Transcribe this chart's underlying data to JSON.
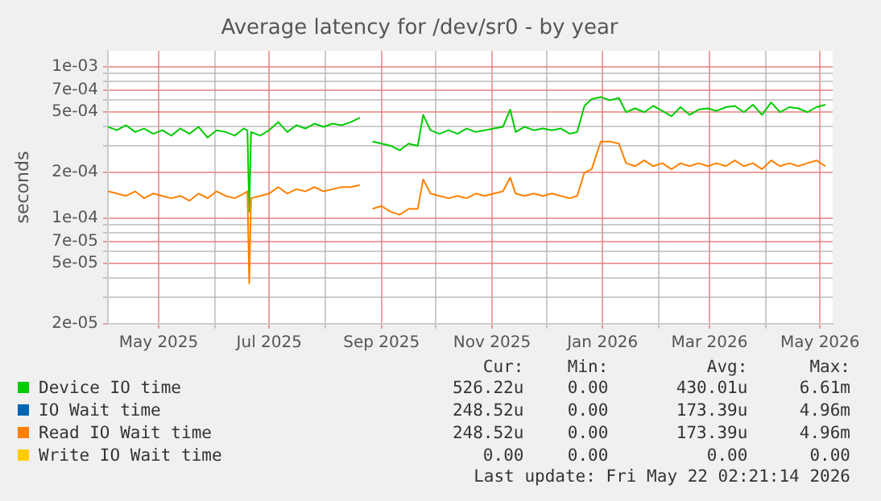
{
  "chart_data": {
    "type": "line",
    "title": "Average latency for /dev/sr0 - by year",
    "ylabel": "seconds",
    "log": "y",
    "grid": true,
    "legend": "bottom",
    "marker": "none",
    "line_style": "solid",
    "x": [
      "2025-04-03",
      "2025-04-08",
      "2025-04-13",
      "2025-04-18",
      "2025-04-23",
      "2025-04-28",
      "2025-05-03",
      "2025-05-08",
      "2025-05-13",
      "2025-05-18",
      "2025-05-23",
      "2025-05-28",
      "2025-06-02",
      "2025-06-07",
      "2025-06-12",
      "2025-06-17",
      "2025-06-19",
      "2025-06-20",
      "2025-06-21",
      "2025-06-26",
      "2025-07-01",
      "2025-07-06",
      "2025-07-11",
      "2025-07-16",
      "2025-07-21",
      "2025-07-26",
      "2025-07-31",
      "2025-08-05",
      "2025-08-10",
      "2025-08-15",
      "2025-08-20",
      "2025-08-21",
      "2025-08-27",
      "2025-09-01",
      "2025-09-06",
      "2025-09-11",
      "2025-09-16",
      "2025-09-21",
      "2025-09-24",
      "2025-09-28",
      "2025-10-03",
      "2025-10-08",
      "2025-10-13",
      "2025-10-18",
      "2025-10-23",
      "2025-10-28",
      "2025-11-02",
      "2025-11-07",
      "2025-11-11",
      "2025-11-14",
      "2025-11-19",
      "2025-11-24",
      "2025-11-29",
      "2025-12-04",
      "2025-12-09",
      "2025-12-14",
      "2025-12-18",
      "2025-12-22",
      "2025-12-26",
      "2025-12-31",
      "2026-01-05",
      "2026-01-10",
      "2026-01-14",
      "2026-01-19",
      "2026-01-24",
      "2026-01-29",
      "2026-02-03",
      "2026-02-08",
      "2026-02-13",
      "2026-02-18",
      "2026-02-23",
      "2026-02-28",
      "2026-03-05",
      "2026-03-10",
      "2026-03-15",
      "2026-03-20",
      "2026-03-25",
      "2026-03-30",
      "2026-04-04",
      "2026-04-09",
      "2026-04-14",
      "2026-04-19",
      "2026-04-24",
      "2026-04-29",
      "2026-05-04"
    ],
    "xlim": [
      "2025-04-03",
      "2026-05-08"
    ],
    "xticks": [
      {
        "value": "2025-05-01",
        "label": "May 2025"
      },
      {
        "value": "2025-06-01",
        "label": null
      },
      {
        "value": "2025-07-01",
        "label": "Jul 2025"
      },
      {
        "value": "2025-08-01",
        "label": null
      },
      {
        "value": "2025-09-01",
        "label": "Sep 2025"
      },
      {
        "value": "2025-10-01",
        "label": null
      },
      {
        "value": "2025-11-01",
        "label": "Nov 2025"
      },
      {
        "value": "2025-12-01",
        "label": null
      },
      {
        "value": "2026-01-01",
        "label": "Jan 2026"
      },
      {
        "value": "2026-02-01",
        "label": null
      },
      {
        "value": "2026-03-01",
        "label": "Mar 2026"
      },
      {
        "value": "2026-04-01",
        "label": null
      },
      {
        "value": "2026-05-01",
        "label": "May 2026"
      }
    ],
    "ylim": [
      2e-05,
      0.00127
    ],
    "yticks": [
      {
        "value": 2e-05,
        "label": "2e-05"
      },
      {
        "value": 3e-05,
        "label": null
      },
      {
        "value": 4e-05,
        "label": null
      },
      {
        "value": 5e-05,
        "label": "5e-05"
      },
      {
        "value": 6e-05,
        "label": null
      },
      {
        "value": 7e-05,
        "label": "7e-05"
      },
      {
        "value": 8e-05,
        "label": null
      },
      {
        "value": 9e-05,
        "label": null
      },
      {
        "value": 0.0001,
        "label": "1e-04"
      },
      {
        "value": 0.0002,
        "label": "2e-04"
      },
      {
        "value": 0.0003,
        "label": null
      },
      {
        "value": 0.0004,
        "label": null
      },
      {
        "value": 0.0005,
        "label": "5e-04"
      },
      {
        "value": 0.0006,
        "label": null
      },
      {
        "value": 0.0007,
        "label": "7e-04"
      },
      {
        "value": 0.0008,
        "label": null
      },
      {
        "value": 0.0009,
        "label": null
      },
      {
        "value": 0.001,
        "label": "1e-03"
      }
    ],
    "series": [
      {
        "name": "Device IO time",
        "color": "#00cc00",
        "values": [
          0.0004,
          0.00038,
          0.00041,
          0.00037,
          0.00039,
          0.00036,
          0.00038,
          0.00035,
          0.00039,
          0.00036,
          0.0004,
          0.00034,
          0.00038,
          0.00037,
          0.00035,
          0.00039,
          0.00038,
          0.00011,
          0.00037,
          0.00035,
          0.00038,
          0.00043,
          0.00037,
          0.00041,
          0.00039,
          0.00042,
          0.0004,
          0.00042,
          0.00041,
          0.00043,
          0.00046,
          null,
          0.00032,
          0.00031,
          0.0003,
          0.00028,
          0.00031,
          0.0003,
          0.00048,
          0.00038,
          0.00036,
          0.00038,
          0.00036,
          0.00039,
          0.00037,
          0.00038,
          0.00039,
          0.0004,
          0.00052,
          0.00037,
          0.0004,
          0.00038,
          0.00039,
          0.00038,
          0.00039,
          0.00036,
          0.00037,
          0.00055,
          0.00061,
          0.00063,
          0.0006,
          0.00062,
          0.0005,
          0.00053,
          0.0005,
          0.00055,
          0.00051,
          0.00047,
          0.00054,
          0.00048,
          0.00052,
          0.00053,
          0.00051,
          0.00054,
          0.00055,
          0.0005,
          0.00056,
          0.00048,
          0.00058,
          0.0005,
          0.00054,
          0.00053,
          0.0005,
          0.00054,
          0.00056
        ]
      },
      {
        "name": "IO Wait time",
        "color": "#0066b3",
        "values": [
          null,
          null,
          null,
          null,
          null,
          null,
          null,
          null,
          null,
          null,
          null,
          null,
          null,
          null,
          null,
          null,
          null,
          null,
          null,
          null,
          null,
          null,
          null,
          null,
          null,
          null,
          null,
          null,
          null,
          null,
          null,
          null,
          null,
          null,
          null,
          null,
          null,
          null,
          null,
          null,
          null,
          null,
          null,
          null,
          null,
          null,
          null,
          null,
          null,
          null,
          null,
          null,
          null,
          null,
          null,
          null,
          null,
          null,
          null,
          null,
          null,
          null,
          null,
          null,
          null,
          null,
          null,
          null,
          null,
          null,
          null,
          null,
          null,
          null,
          null,
          null,
          null,
          null,
          null,
          null,
          null,
          null,
          null,
          null,
          null
        ]
      },
      {
        "name": "Read IO Wait time",
        "color": "#ff8000",
        "values": [
          0.00015,
          0.000145,
          0.00014,
          0.00015,
          0.000135,
          0.000145,
          0.00014,
          0.000135,
          0.00014,
          0.00013,
          0.000145,
          0.000135,
          0.00015,
          0.00014,
          0.000135,
          0.000145,
          0.00015,
          3.7e-05,
          0.000135,
          0.00014,
          0.000145,
          0.00016,
          0.000145,
          0.000155,
          0.00015,
          0.00016,
          0.00015,
          0.000155,
          0.00016,
          0.00016,
          0.000165,
          null,
          0.000115,
          0.00012,
          0.00011,
          0.000105,
          0.000115,
          0.000115,
          0.00018,
          0.000145,
          0.00014,
          0.000135,
          0.00014,
          0.000135,
          0.000145,
          0.00014,
          0.000145,
          0.00015,
          0.000185,
          0.000145,
          0.00014,
          0.000145,
          0.00014,
          0.000145,
          0.00014,
          0.000135,
          0.00014,
          0.0002,
          0.00021,
          0.00032,
          0.00032,
          0.00031,
          0.00023,
          0.00022,
          0.00024,
          0.00022,
          0.00023,
          0.00021,
          0.00023,
          0.00022,
          0.00023,
          0.00022,
          0.00023,
          0.00022,
          0.00024,
          0.00022,
          0.00023,
          0.00021,
          0.00024,
          0.00022,
          0.00023,
          0.00022,
          0.00023,
          0.00024,
          0.00022
        ]
      },
      {
        "name": "Write IO Wait time",
        "color": "#ffcc00",
        "values": [
          null,
          null,
          null,
          null,
          null,
          null,
          null,
          null,
          null,
          null,
          null,
          null,
          null,
          null,
          null,
          null,
          null,
          null,
          null,
          null,
          null,
          null,
          null,
          null,
          null,
          null,
          null,
          null,
          null,
          null,
          null,
          null,
          null,
          null,
          null,
          null,
          null,
          null,
          null,
          null,
          null,
          null,
          null,
          null,
          null,
          null,
          null,
          null,
          null,
          null,
          null,
          null,
          null,
          null,
          null,
          null,
          null,
          null,
          null,
          null,
          null,
          null,
          null,
          null,
          null,
          null,
          null,
          null,
          null,
          null,
          null,
          null,
          null,
          null,
          null,
          null,
          null,
          null,
          null,
          null,
          null,
          null,
          null,
          null,
          null
        ]
      }
    ],
    "annotations": [
      "Cur:",
      "Min:",
      "Avg:",
      "Max:",
      "526.22u",
      "0.00",
      "430.01u",
      "6.61m",
      "248.52u",
      "0.00",
      "173.39u",
      "4.96m",
      "248.52u",
      "0.00",
      "173.39u",
      "4.96m",
      "0.00",
      "0.00",
      "0.00",
      "0.00",
      "Last update: Fri May 22 02:21:14 2026"
    ]
  }
}
